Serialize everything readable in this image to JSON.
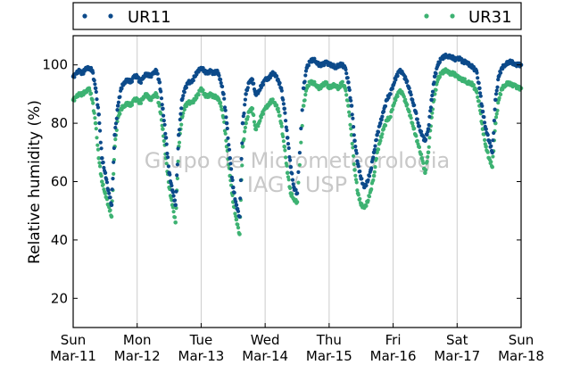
{
  "chart_data": {
    "type": "scatter",
    "title": "",
    "xlabel": "",
    "ylabel": "Relative humidity (%)",
    "watermark": [
      "Grupo de Micrometeorologia",
      "IAG / USP"
    ],
    "legend": {
      "placement": "top",
      "entries": [
        "UR11",
        "UR31"
      ]
    },
    "grid": {
      "x": true,
      "y": false
    },
    "xlim": [
      0,
      7
    ],
    "ylim": [
      10,
      110
    ],
    "yticks": [
      20,
      40,
      60,
      80,
      100
    ],
    "xticks": [
      {
        "value": 0,
        "day": "Sun",
        "date": "Mar-11"
      },
      {
        "value": 1,
        "day": "Mon",
        "date": "Mar-12"
      },
      {
        "value": 2,
        "day": "Tue",
        "date": "Mar-13"
      },
      {
        "value": 3,
        "day": "Wed",
        "date": "Mar-14"
      },
      {
        "value": 4,
        "day": "Thu",
        "date": "Mar-15"
      },
      {
        "value": 5,
        "day": "Fri",
        "date": "Mar-16"
      },
      {
        "value": 6,
        "day": "Sat",
        "date": "Mar-17"
      },
      {
        "value": 7,
        "day": "Sun",
        "date": "Mar-18"
      }
    ],
    "series": [
      {
        "name": "UR11",
        "color": "#0c4a8a",
        "points": [
          [
            0.0,
            96
          ],
          [
            0.05,
            97
          ],
          [
            0.1,
            98
          ],
          [
            0.15,
            97
          ],
          [
            0.2,
            99
          ],
          [
            0.25,
            99
          ],
          [
            0.3,
            98
          ],
          [
            0.35,
            92
          ],
          [
            0.4,
            83
          ],
          [
            0.45,
            68
          ],
          [
            0.5,
            63
          ],
          [
            0.55,
            57
          ],
          [
            0.6,
            52
          ],
          [
            0.65,
            76
          ],
          [
            0.7,
            86
          ],
          [
            0.75,
            92
          ],
          [
            0.8,
            94
          ],
          [
            0.85,
            95
          ],
          [
            0.9,
            94
          ],
          [
            0.95,
            96
          ],
          [
            1.0,
            96
          ],
          [
            1.05,
            94
          ],
          [
            1.1,
            96
          ],
          [
            1.15,
            97
          ],
          [
            1.2,
            96
          ],
          [
            1.25,
            97
          ],
          [
            1.3,
            98
          ],
          [
            1.35,
            94
          ],
          [
            1.4,
            85
          ],
          [
            1.45,
            75
          ],
          [
            1.5,
            63
          ],
          [
            1.55,
            57
          ],
          [
            1.6,
            52
          ],
          [
            1.65,
            76
          ],
          [
            1.7,
            88
          ],
          [
            1.75,
            92
          ],
          [
            1.8,
            94
          ],
          [
            1.85,
            94
          ],
          [
            1.9,
            96
          ],
          [
            1.95,
            98
          ],
          [
            2.0,
            99
          ],
          [
            2.05,
            98
          ],
          [
            2.1,
            97
          ],
          [
            2.15,
            98
          ],
          [
            2.2,
            97
          ],
          [
            2.25,
            98
          ],
          [
            2.3,
            95
          ],
          [
            2.35,
            90
          ],
          [
            2.4,
            80
          ],
          [
            2.45,
            68
          ],
          [
            2.5,
            58
          ],
          [
            2.55,
            52
          ],
          [
            2.6,
            48
          ],
          [
            2.65,
            80
          ],
          [
            2.7,
            90
          ],
          [
            2.75,
            94
          ],
          [
            2.8,
            95
          ],
          [
            2.85,
            90
          ],
          [
            2.9,
            91
          ],
          [
            2.95,
            93
          ],
          [
            3.0,
            95
          ],
          [
            3.05,
            95
          ],
          [
            3.1,
            97
          ],
          [
            3.15,
            97
          ],
          [
            3.2,
            95
          ],
          [
            3.25,
            92
          ],
          [
            3.3,
            85
          ],
          [
            3.35,
            75
          ],
          [
            3.4,
            65
          ],
          [
            3.45,
            58
          ],
          [
            3.5,
            56
          ],
          [
            3.6,
            92
          ],
          [
            3.65,
            99
          ],
          [
            3.7,
            101
          ],
          [
            3.75,
            102
          ],
          [
            3.8,
            101
          ],
          [
            3.85,
            100
          ],
          [
            3.9,
            100
          ],
          [
            3.95,
            101
          ],
          [
            4.0,
            100
          ],
          [
            4.05,
            100
          ],
          [
            4.1,
            99
          ],
          [
            4.15,
            100
          ],
          [
            4.2,
            100
          ],
          [
            4.25,
            99
          ],
          [
            4.3,
            94
          ],
          [
            4.35,
            86
          ],
          [
            4.4,
            74
          ],
          [
            4.45,
            66
          ],
          [
            4.5,
            61
          ],
          [
            4.55,
            58
          ],
          [
            4.6,
            60
          ],
          [
            4.65,
            64
          ],
          [
            4.7,
            70
          ],
          [
            4.75,
            76
          ],
          [
            4.8,
            80
          ],
          [
            4.85,
            84
          ],
          [
            4.9,
            88
          ],
          [
            4.95,
            90
          ],
          [
            5.0,
            93
          ],
          [
            5.05,
            96
          ],
          [
            5.1,
            98
          ],
          [
            5.15,
            97
          ],
          [
            5.2,
            95
          ],
          [
            5.25,
            92
          ],
          [
            5.3,
            88
          ],
          [
            5.35,
            84
          ],
          [
            5.4,
            79
          ],
          [
            5.45,
            76
          ],
          [
            5.5,
            74
          ],
          [
            5.55,
            78
          ],
          [
            5.6,
            88
          ],
          [
            5.65,
            96
          ],
          [
            5.7,
            100
          ],
          [
            5.75,
            102
          ],
          [
            5.8,
            103
          ],
          [
            5.85,
            103
          ],
          [
            5.9,
            103
          ],
          [
            5.95,
            102
          ],
          [
            6.0,
            102
          ],
          [
            6.05,
            102
          ],
          [
            6.1,
            101
          ],
          [
            6.15,
            101
          ],
          [
            6.2,
            100
          ],
          [
            6.25,
            99
          ],
          [
            6.3,
            98
          ],
          [
            6.35,
            92
          ],
          [
            6.4,
            84
          ],
          [
            6.45,
            78
          ],
          [
            6.5,
            74
          ],
          [
            6.55,
            70
          ],
          [
            6.6,
            88
          ],
          [
            6.65,
            96
          ],
          [
            6.7,
            99
          ],
          [
            6.75,
            100
          ],
          [
            6.8,
            101
          ],
          [
            6.85,
            101
          ],
          [
            6.9,
            100
          ],
          [
            6.95,
            100
          ],
          [
            7.0,
            100
          ]
        ]
      },
      {
        "name": "UR31",
        "color": "#3db272",
        "points": [
          [
            0.0,
            88
          ],
          [
            0.05,
            89
          ],
          [
            0.1,
            90
          ],
          [
            0.15,
            90
          ],
          [
            0.2,
            91
          ],
          [
            0.25,
            92
          ],
          [
            0.3,
            88
          ],
          [
            0.35,
            80
          ],
          [
            0.4,
            68
          ],
          [
            0.45,
            60
          ],
          [
            0.5,
            56
          ],
          [
            0.55,
            52
          ],
          [
            0.6,
            48
          ],
          [
            0.65,
            72
          ],
          [
            0.7,
            82
          ],
          [
            0.75,
            85
          ],
          [
            0.8,
            86
          ],
          [
            0.85,
            87
          ],
          [
            0.9,
            86
          ],
          [
            0.95,
            88
          ],
          [
            1.0,
            88
          ],
          [
            1.05,
            87
          ],
          [
            1.1,
            89
          ],
          [
            1.15,
            90
          ],
          [
            1.2,
            88
          ],
          [
            1.25,
            89
          ],
          [
            1.3,
            90
          ],
          [
            1.35,
            86
          ],
          [
            1.4,
            78
          ],
          [
            1.45,
            68
          ],
          [
            1.5,
            58
          ],
          [
            1.55,
            52
          ],
          [
            1.6,
            46
          ],
          [
            1.65,
            72
          ],
          [
            1.7,
            82
          ],
          [
            1.75,
            86
          ],
          [
            1.8,
            87
          ],
          [
            1.85,
            87
          ],
          [
            1.9,
            88
          ],
          [
            1.95,
            90
          ],
          [
            2.0,
            92
          ],
          [
            2.05,
            90
          ],
          [
            2.1,
            89
          ],
          [
            2.15,
            90
          ],
          [
            2.2,
            89
          ],
          [
            2.25,
            89
          ],
          [
            2.3,
            87
          ],
          [
            2.35,
            82
          ],
          [
            2.4,
            72
          ],
          [
            2.45,
            62
          ],
          [
            2.5,
            53
          ],
          [
            2.55,
            47
          ],
          [
            2.6,
            42
          ],
          [
            2.65,
            72
          ],
          [
            2.7,
            80
          ],
          [
            2.75,
            84
          ],
          [
            2.8,
            85
          ],
          [
            2.85,
            78
          ],
          [
            2.9,
            80
          ],
          [
            2.95,
            83
          ],
          [
            3.0,
            85
          ],
          [
            3.05,
            86
          ],
          [
            3.1,
            88
          ],
          [
            3.15,
            87
          ],
          [
            3.2,
            85
          ],
          [
            3.25,
            80
          ],
          [
            3.3,
            72
          ],
          [
            3.35,
            63
          ],
          [
            3.4,
            56
          ],
          [
            3.45,
            54
          ],
          [
            3.5,
            53
          ],
          [
            3.6,
            86
          ],
          [
            3.65,
            92
          ],
          [
            3.7,
            94
          ],
          [
            3.75,
            94
          ],
          [
            3.8,
            93
          ],
          [
            3.85,
            92
          ],
          [
            3.9,
            93
          ],
          [
            3.95,
            94
          ],
          [
            4.0,
            92
          ],
          [
            4.05,
            93
          ],
          [
            4.1,
            93
          ],
          [
            4.15,
            92
          ],
          [
            4.2,
            94
          ],
          [
            4.25,
            92
          ],
          [
            4.3,
            86
          ],
          [
            4.35,
            76
          ],
          [
            4.4,
            64
          ],
          [
            4.45,
            56
          ],
          [
            4.5,
            52
          ],
          [
            4.55,
            51
          ],
          [
            4.6,
            53
          ],
          [
            4.65,
            57
          ],
          [
            4.7,
            62
          ],
          [
            4.75,
            70
          ],
          [
            4.8,
            74
          ],
          [
            4.85,
            78
          ],
          [
            4.9,
            81
          ],
          [
            4.95,
            82
          ],
          [
            5.0,
            86
          ],
          [
            5.05,
            89
          ],
          [
            5.1,
            91
          ],
          [
            5.15,
            90
          ],
          [
            5.2,
            87
          ],
          [
            5.25,
            84
          ],
          [
            5.3,
            80
          ],
          [
            5.35,
            76
          ],
          [
            5.4,
            72
          ],
          [
            5.45,
            68
          ],
          [
            5.5,
            63
          ],
          [
            5.55,
            70
          ],
          [
            5.6,
            82
          ],
          [
            5.65,
            90
          ],
          [
            5.7,
            95
          ],
          [
            5.75,
            97
          ],
          [
            5.8,
            98
          ],
          [
            5.85,
            98
          ],
          [
            5.9,
            97
          ],
          [
            5.95,
            97
          ],
          [
            6.0,
            96
          ],
          [
            6.05,
            95
          ],
          [
            6.1,
            95
          ],
          [
            6.15,
            94
          ],
          [
            6.2,
            94
          ],
          [
            6.25,
            93
          ],
          [
            6.3,
            91
          ],
          [
            6.35,
            86
          ],
          [
            6.4,
            78
          ],
          [
            6.45,
            72
          ],
          [
            6.5,
            68
          ],
          [
            6.55,
            65
          ],
          [
            6.6,
            80
          ],
          [
            6.65,
            88
          ],
          [
            6.7,
            92
          ],
          [
            6.75,
            93
          ],
          [
            6.8,
            94
          ],
          [
            6.85,
            93
          ],
          [
            6.9,
            93
          ],
          [
            6.95,
            92
          ],
          [
            7.0,
            92
          ]
        ]
      }
    ]
  }
}
